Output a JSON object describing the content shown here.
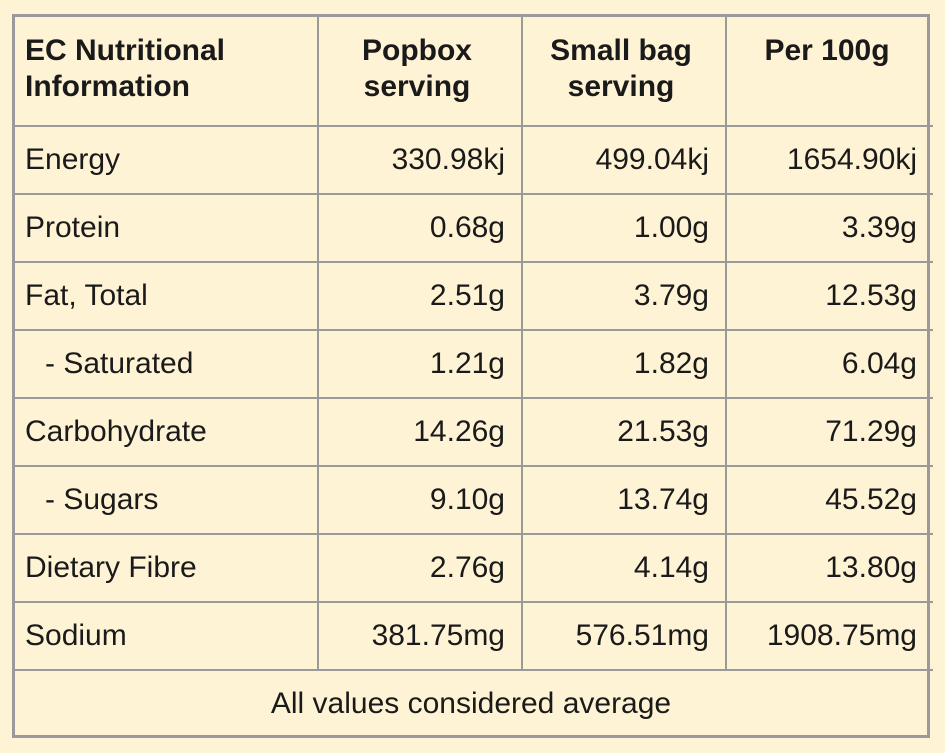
{
  "table": {
    "headers": [
      "EC Nutritional Information",
      "Popbox serving",
      "Small bag serving",
      "Per 100g"
    ],
    "rows": [
      {
        "label": "Energy",
        "sub": false,
        "values": [
          "330.98kj",
          "499.04kj",
          "1654.90kj"
        ]
      },
      {
        "label": "Protein",
        "sub": false,
        "values": [
          "0.68g",
          "1.00g",
          "3.39g"
        ]
      },
      {
        "label": "Fat, Total",
        "sub": false,
        "values": [
          "2.51g",
          "3.79g",
          "12.53g"
        ]
      },
      {
        "label": "- Saturated",
        "sub": true,
        "values": [
          "1.21g",
          "1.82g",
          "6.04g"
        ]
      },
      {
        "label": "Carbohydrate",
        "sub": false,
        "values": [
          "14.26g",
          "21.53g",
          "71.29g"
        ]
      },
      {
        "label": "- Sugars",
        "sub": true,
        "values": [
          "9.10g",
          "13.74g",
          "45.52g"
        ]
      },
      {
        "label": "Dietary Fibre",
        "sub": false,
        "values": [
          "2.76g",
          "4.14g",
          "13.80g"
        ]
      },
      {
        "label": "Sodium",
        "sub": false,
        "values": [
          "381.75mg",
          "576.51mg",
          "1908.75mg"
        ]
      }
    ],
    "footer": "All values considered average"
  },
  "colors": {
    "background": "#fff3d6",
    "border": "#9a9a9a",
    "text": "#1a1a1a"
  }
}
